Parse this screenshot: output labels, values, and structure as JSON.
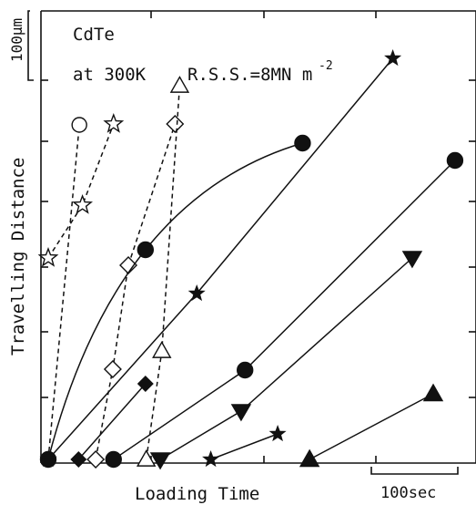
{
  "chart_data": {
    "type": "scatter",
    "annotations": {
      "material": "CdTe",
      "conditions": "at 300K",
      "rss_prefix": "R.S.S.=8MN m",
      "rss_exp": "-2"
    },
    "xlabel": "Loading Time",
    "ylabel": "Travelling Distance",
    "xscale_label": "100sec",
    "yscale_label": "100μm",
    "xscale_span": 100,
    "yscale_span": 100,
    "xlim": [
      0,
      550
    ],
    "ylim": [
      0,
      504
    ],
    "grid": false,
    "series": [
      {
        "marker": "open-circle",
        "line": "dashed",
        "points": [
          [
            0,
            0
          ],
          [
            40,
            367
          ]
        ]
      },
      {
        "marker": "open-star",
        "line": "dashed",
        "points": [
          [
            0,
            221
          ],
          [
            44,
            279
          ],
          [
            84,
            368
          ]
        ]
      },
      {
        "marker": "open-diamond",
        "line": "dashed",
        "points": [
          [
            61,
            0
          ],
          [
            83,
            99
          ],
          [
            103,
            213
          ],
          [
            163,
            368
          ]
        ]
      },
      {
        "marker": "open-triangle",
        "line": "dashed",
        "points": [
          [
            126,
            0
          ],
          [
            146,
            119
          ],
          [
            169,
            410
          ]
        ]
      },
      {
        "marker": "filled-circle",
        "line": "solid",
        "curve": true,
        "points": [
          [
            0,
            0
          ],
          [
            125,
            230
          ],
          [
            327,
            347
          ]
        ]
      },
      {
        "marker": "filled-star",
        "line": "solid",
        "points": [
          [
            0,
            0
          ],
          [
            191,
            182
          ],
          [
            443,
            440
          ]
        ]
      },
      {
        "marker": "filled-diamond",
        "line": "solid",
        "points": [
          [
            39,
            0
          ],
          [
            125,
            83
          ]
        ]
      },
      {
        "marker": "filled-circle",
        "line": "solid",
        "points": [
          [
            84,
            0
          ],
          [
            253,
            98
          ],
          [
            523,
            328
          ]
        ]
      },
      {
        "marker": "filled-triangle-down",
        "line": "solid",
        "points": [
          [
            144,
            0
          ],
          [
            248,
            53
          ],
          [
            468,
            221
          ]
        ]
      },
      {
        "marker": "filled-star",
        "line": "solid",
        "points": [
          [
            209,
            0
          ],
          [
            295,
            28
          ]
        ]
      },
      {
        "marker": "filled-triangle-up",
        "line": "solid",
        "points": [
          [
            336,
            0
          ],
          [
            495,
            72
          ]
        ]
      }
    ]
  }
}
